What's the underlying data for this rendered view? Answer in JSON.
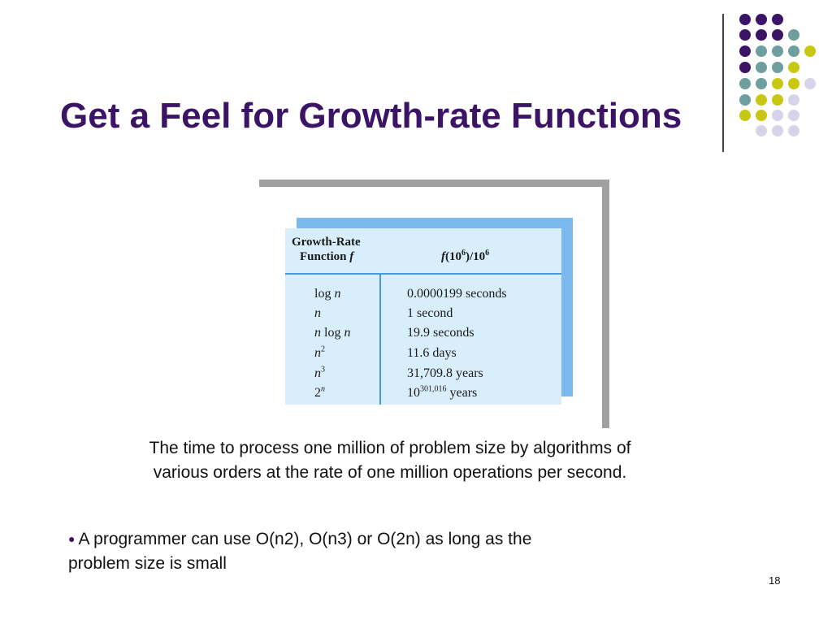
{
  "slide": {
    "title": "Get a Feel for Growth-rate Functions",
    "page_number": "18"
  },
  "table": {
    "header_col1_line1": "Growth-Rate",
    "header_col1_line2": "Function",
    "header_col1_var": "f",
    "header_col2_f": "f",
    "header_col2_open": "(10",
    "header_col2_exp1": "6",
    "header_col2_mid": ")/10",
    "header_col2_exp2": "6",
    "rows": [
      {
        "fn_pre": "log ",
        "fn_var": "n",
        "fn_post": "",
        "fn_sup": "",
        "time_base": "0.0000199 seconds",
        "time_sup": "",
        "time_unit": ""
      },
      {
        "fn_pre": "",
        "fn_var": "n",
        "fn_post": "",
        "fn_sup": "",
        "time_base": "1 second",
        "time_sup": "",
        "time_unit": ""
      },
      {
        "fn_pre": "",
        "fn_var": "n",
        "fn_post": " log ",
        "fn_var2": "n",
        "fn_sup": "",
        "time_base": "19.9 seconds",
        "time_sup": "",
        "time_unit": ""
      },
      {
        "fn_pre": "",
        "fn_var": "n",
        "fn_post": "",
        "fn_sup": "2",
        "time_base": "11.6 days",
        "time_sup": "",
        "time_unit": ""
      },
      {
        "fn_pre": "",
        "fn_var": "n",
        "fn_post": "",
        "fn_sup": "3",
        "time_base": "31,709.8 years",
        "time_sup": "",
        "time_unit": ""
      },
      {
        "fn_pre": "2",
        "fn_var": "",
        "fn_post": "",
        "fn_sup_var": "n",
        "time_base": "10",
        "time_sup": "301,016",
        "time_unit": " years"
      }
    ]
  },
  "caption": {
    "line1": "The time to process one million of problem size by algorithms of",
    "line2": "various orders at the rate of one million operations per second."
  },
  "bullet": {
    "symbol": "●",
    "line1": "A programmer can use O(n2), O(n3) or O(2n) as long as the",
    "line2": "problem size is small"
  },
  "colors": {
    "title": "#3b1466",
    "dot_purple": "#3b1466",
    "dot_teal": "#6e9e9e",
    "dot_yellow": "#c8c814",
    "dot_lavender": "#d6d4e8"
  }
}
